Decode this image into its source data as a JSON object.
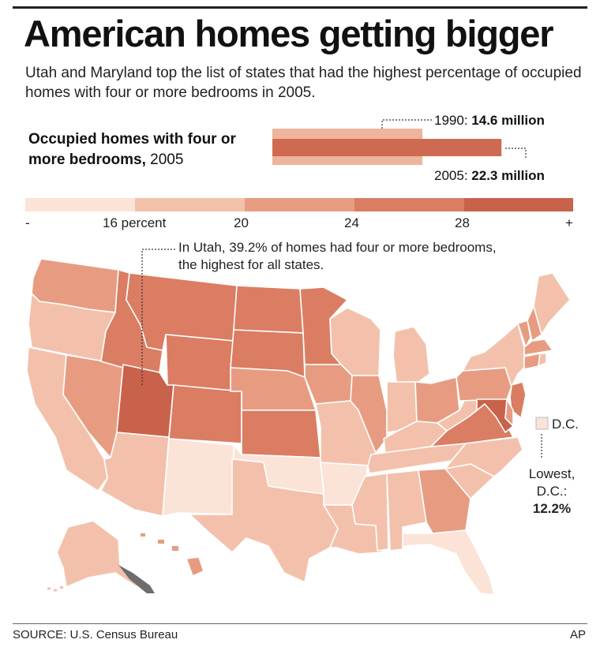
{
  "header": {
    "title": "American homes getting bigger",
    "subtitle": "Utah and Maryland top the list of states that had the highest percentage of occupied homes with four or more bedrooms in 2005."
  },
  "summary": {
    "label_bold": "Occupied homes with four or more bedrooms,",
    "label_year": " 2005",
    "bar_1990": {
      "year": "1990:",
      "value_text": "14.6 million",
      "value": 14.6
    },
    "bar_2005": {
      "year": "2005:",
      "value_text": "22.3 million",
      "value": 22.3
    }
  },
  "scale": {
    "ticks": [
      "-",
      "16 percent",
      "20",
      "24",
      "28",
      "+"
    ],
    "colors": [
      "#fbe3d8",
      "#f3c1ab",
      "#e79c82",
      "#da7d62",
      "#c9624b"
    ]
  },
  "annotations": {
    "utah": "In Utah, 39.2% of homes had four or more bedrooms, the highest for all states.",
    "dc_label": "D.C.",
    "dc_note_1": "Lowest,",
    "dc_note_2": "D.C.:",
    "dc_note_value": "12.2%"
  },
  "states": {
    "WA": 2,
    "OR": 1,
    "CA": 1,
    "NV": 2,
    "ID": 3,
    "MT": 3,
    "WY": 3,
    "UT": 4,
    "AZ": 1,
    "CO": 3,
    "NM": 0,
    "ND": 3,
    "SD": 3,
    "NE": 2,
    "KS": 3,
    "OK": 0,
    "TX": 1,
    "MN": 3,
    "IA": 2,
    "MO": 1,
    "AR": 0,
    "LA": 1,
    "WI": 1,
    "IL": 2,
    "MI": 1,
    "IN": 1,
    "OH": 2,
    "KY": 1,
    "TN": 1,
    "MS": 1,
    "AL": 1,
    "GA": 2,
    "FL": 0,
    "SC": 1,
    "NC": 1,
    "VA": 3,
    "WV": 1,
    "PA": 2,
    "NY": 1,
    "VT": 2,
    "NH": 2,
    "ME": 1,
    "MA": 2,
    "CT": 2,
    "RI": 1,
    "NJ": 3,
    "DE": 2,
    "MD": 4,
    "AK": 1,
    "HI": 2,
    "DC": 0
  },
  "footer": {
    "source": "SOURCE: U.S. Census Bureau",
    "credit": "AP"
  }
}
